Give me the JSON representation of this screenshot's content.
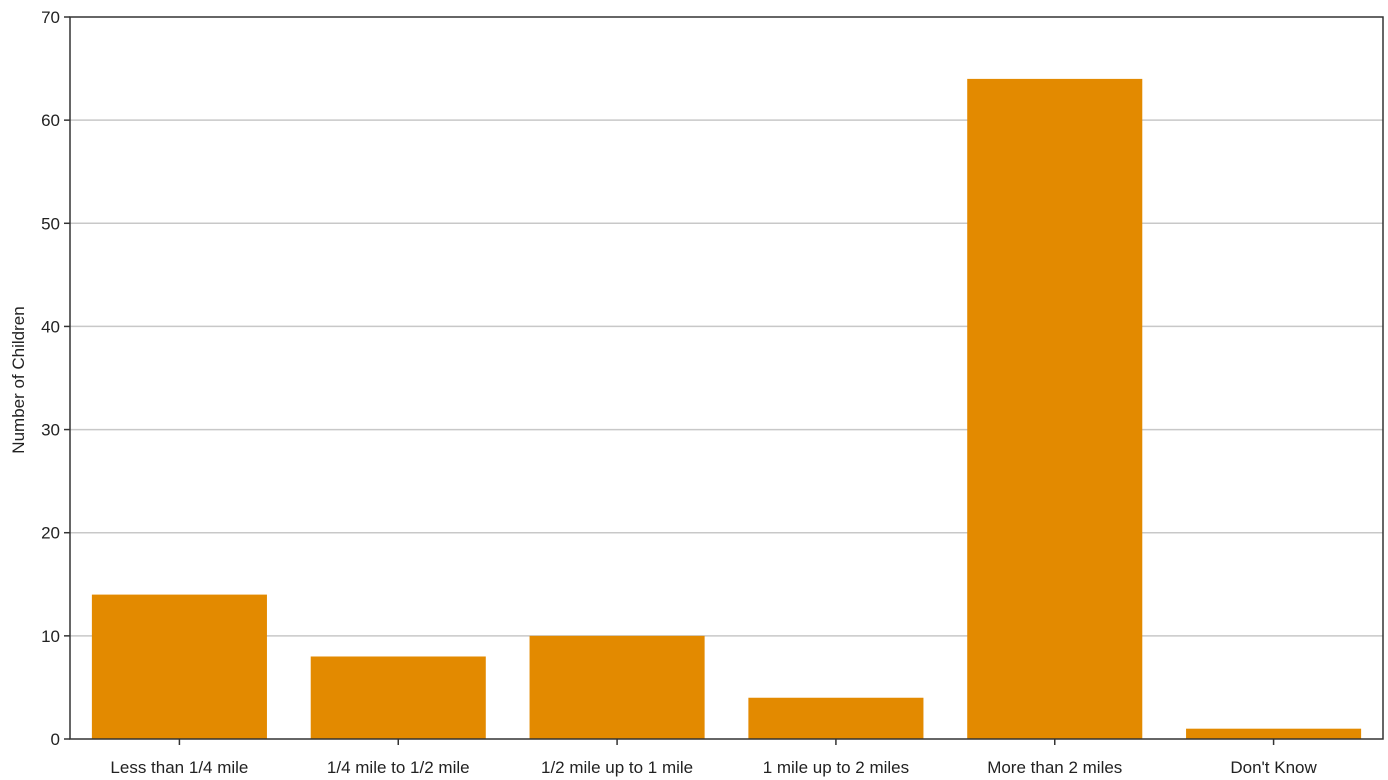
{
  "chart_data": {
    "type": "bar",
    "title": "",
    "xlabel": "",
    "ylabel": "Number of Children",
    "categories": [
      "Less than 1/4 mile",
      "1/4 mile to 1/2 mile",
      "1/2 mile up to 1 mile",
      "1 mile up to 2 miles",
      "More than 2 miles",
      "Don't Know"
    ],
    "values": [
      14,
      8,
      10,
      4,
      64,
      1
    ],
    "ylim": [
      0,
      70
    ],
    "yticks": [
      0,
      10,
      20,
      30,
      40,
      50,
      60,
      70
    ],
    "grid": true,
    "legend": "none",
    "colors": {
      "bar": "#E38A00",
      "grid": "#c8c8c8",
      "axis": "#333333",
      "text": "#222222"
    }
  }
}
